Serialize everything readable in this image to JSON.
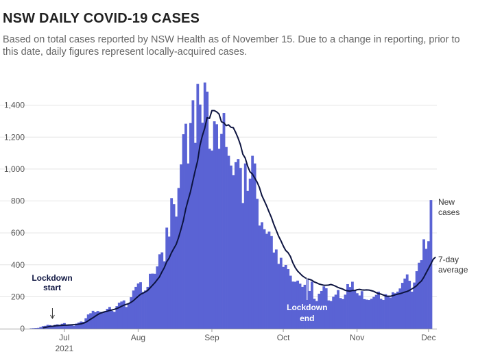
{
  "title": "NSW DAILY COVID-19 CASES",
  "subtitle": "Based on total cases reported by NSW Health as of November 15. Due to a change in reporting, prior to this date, daily figures represent locally-acquired cases.",
  "chart_data": {
    "type": "bar",
    "title": "NSW DAILY COVID-19 CASES",
    "start_date": "2021-06-16",
    "end_date": "2021-12-16",
    "ylim": [
      0,
      1600
    ],
    "yticks": [
      "0",
      "200",
      "400",
      "600",
      "800",
      "1,000",
      "1,200",
      "1,400"
    ],
    "xticks": [
      {
        "date": "2021-07-01",
        "label": "Jul",
        "sublabel": "2021"
      },
      {
        "date": "2021-08-01",
        "label": "Aug"
      },
      {
        "date": "2021-09-01",
        "label": "Sep"
      },
      {
        "date": "2021-10-01",
        "label": "Oct"
      },
      {
        "date": "2021-11-01",
        "label": "Nov"
      },
      {
        "date": "2021-12-01",
        "label": "Dec"
      }
    ],
    "grid": true,
    "colors": {
      "bars": "#5a63d4",
      "average": "#0d1440"
    },
    "series": [
      {
        "name": "New cases",
        "kind": "bar",
        "values": [
          0,
          2,
          3,
          4,
          5,
          10,
          16,
          18,
          24,
          22,
          18,
          24,
          27,
          21,
          31,
          35,
          24,
          27,
          24,
          18,
          32,
          38,
          45,
          43,
          65,
          89,
          97,
          112,
          103,
          111,
          105,
          98,
          110,
          124,
          136,
          112,
          105,
          141,
          163,
          170,
          177,
          136,
          158,
          197,
          239,
          262,
          283,
          291,
          230,
          239,
          262,
          344,
          345,
          344,
          390,
          466,
          478,
          422,
          633,
          577,
          818,
          780,
          702,
          881,
          1029,
          1218,
          1284,
          1035,
          1288,
          1431,
          1164,
          1533,
          1404,
          1290,
          1542,
          1485,
          1127,
          1116,
          1299,
          1281,
          1127,
          1220,
          1351,
          1138,
          1083,
          1022,
          961,
          1043,
          1063,
          1007,
          787,
          1035,
          863,
          940,
          1083,
          1035,
          813,
          646,
          667,
          623,
          594,
          608,
          580,
          477,
          496,
          406,
          444,
          387,
          399,
          373,
          332,
          295,
          294,
          301,
          282,
          262,
          275,
          308,
          236,
          294,
          187,
          173,
          219,
          236,
          265,
          253,
          177,
          173,
          200,
          213,
          242,
          192,
          185,
          213,
          279,
          261,
          294,
          239,
          222,
          208,
          235,
          185,
          182,
          180,
          187,
          199,
          212,
          232,
          187,
          180,
          216,
          203,
          195,
          228,
          222,
          232,
          252,
          287,
          314,
          340,
          300,
          232,
          289,
          360,
          413,
          429,
          560,
          500,
          548,
          806
        ]
      },
      {
        "name": "7-day average",
        "kind": "line",
        "values": [
          null,
          null,
          null,
          null,
          null,
          null,
          6,
          8,
          11,
          14,
          15,
          17,
          19,
          20,
          21,
          22,
          22,
          23,
          24,
          25,
          26,
          28,
          30,
          34,
          40,
          49,
          59,
          68,
          78,
          88,
          96,
          101,
          106,
          109,
          114,
          117,
          121,
          126,
          132,
          140,
          147,
          152,
          157,
          165,
          175,
          189,
          202,
          215,
          222,
          230,
          239,
          255,
          271,
          287,
          306,
          325,
          355,
          382,
          419,
          441,
          475,
          502,
          528,
          571,
          622,
          677,
          749,
          805,
          858,
          925,
          991,
          1051,
          1148,
          1209,
          1256,
          1322,
          1317,
          1366,
          1366,
          1358,
          1345,
          1296,
          1290,
          1272,
          1277,
          1262,
          1259,
          1229,
          1194,
          1152,
          1093,
          1069,
          1019,
          983,
          969,
          944,
          918,
          883,
          834,
          802,
          769,
          732,
          697,
          654,
          617,
          580,
          551,
          518,
          490,
          476,
          452,
          413,
          383,
          361,
          346,
          331,
          321,
          312,
          309,
          303,
          293,
          287,
          280,
          276,
          272,
          272,
          273,
          277,
          272,
          266,
          258,
          253,
          248,
          240,
          237,
          235,
          239,
          239,
          244,
          246,
          243,
          242,
          243,
          242,
          238,
          234,
          226,
          219,
          217,
          211,
          205,
          203,
          203,
          207,
          212,
          216,
          219,
          224,
          229,
          233,
          240,
          249,
          258,
          269,
          285,
          298,
          321,
          349,
          377,
          405,
          435,
          449
        ]
      }
    ],
    "annotations": [
      {
        "text": [
          "Lockdown",
          "start"
        ],
        "date": "2021-06-26"
      },
      {
        "text": [
          "Lockdown",
          "end"
        ],
        "date": "2021-10-11"
      }
    ],
    "end_labels": {
      "bars": [
        "New",
        "cases"
      ],
      "average": [
        "7-day",
        "average"
      ]
    }
  }
}
